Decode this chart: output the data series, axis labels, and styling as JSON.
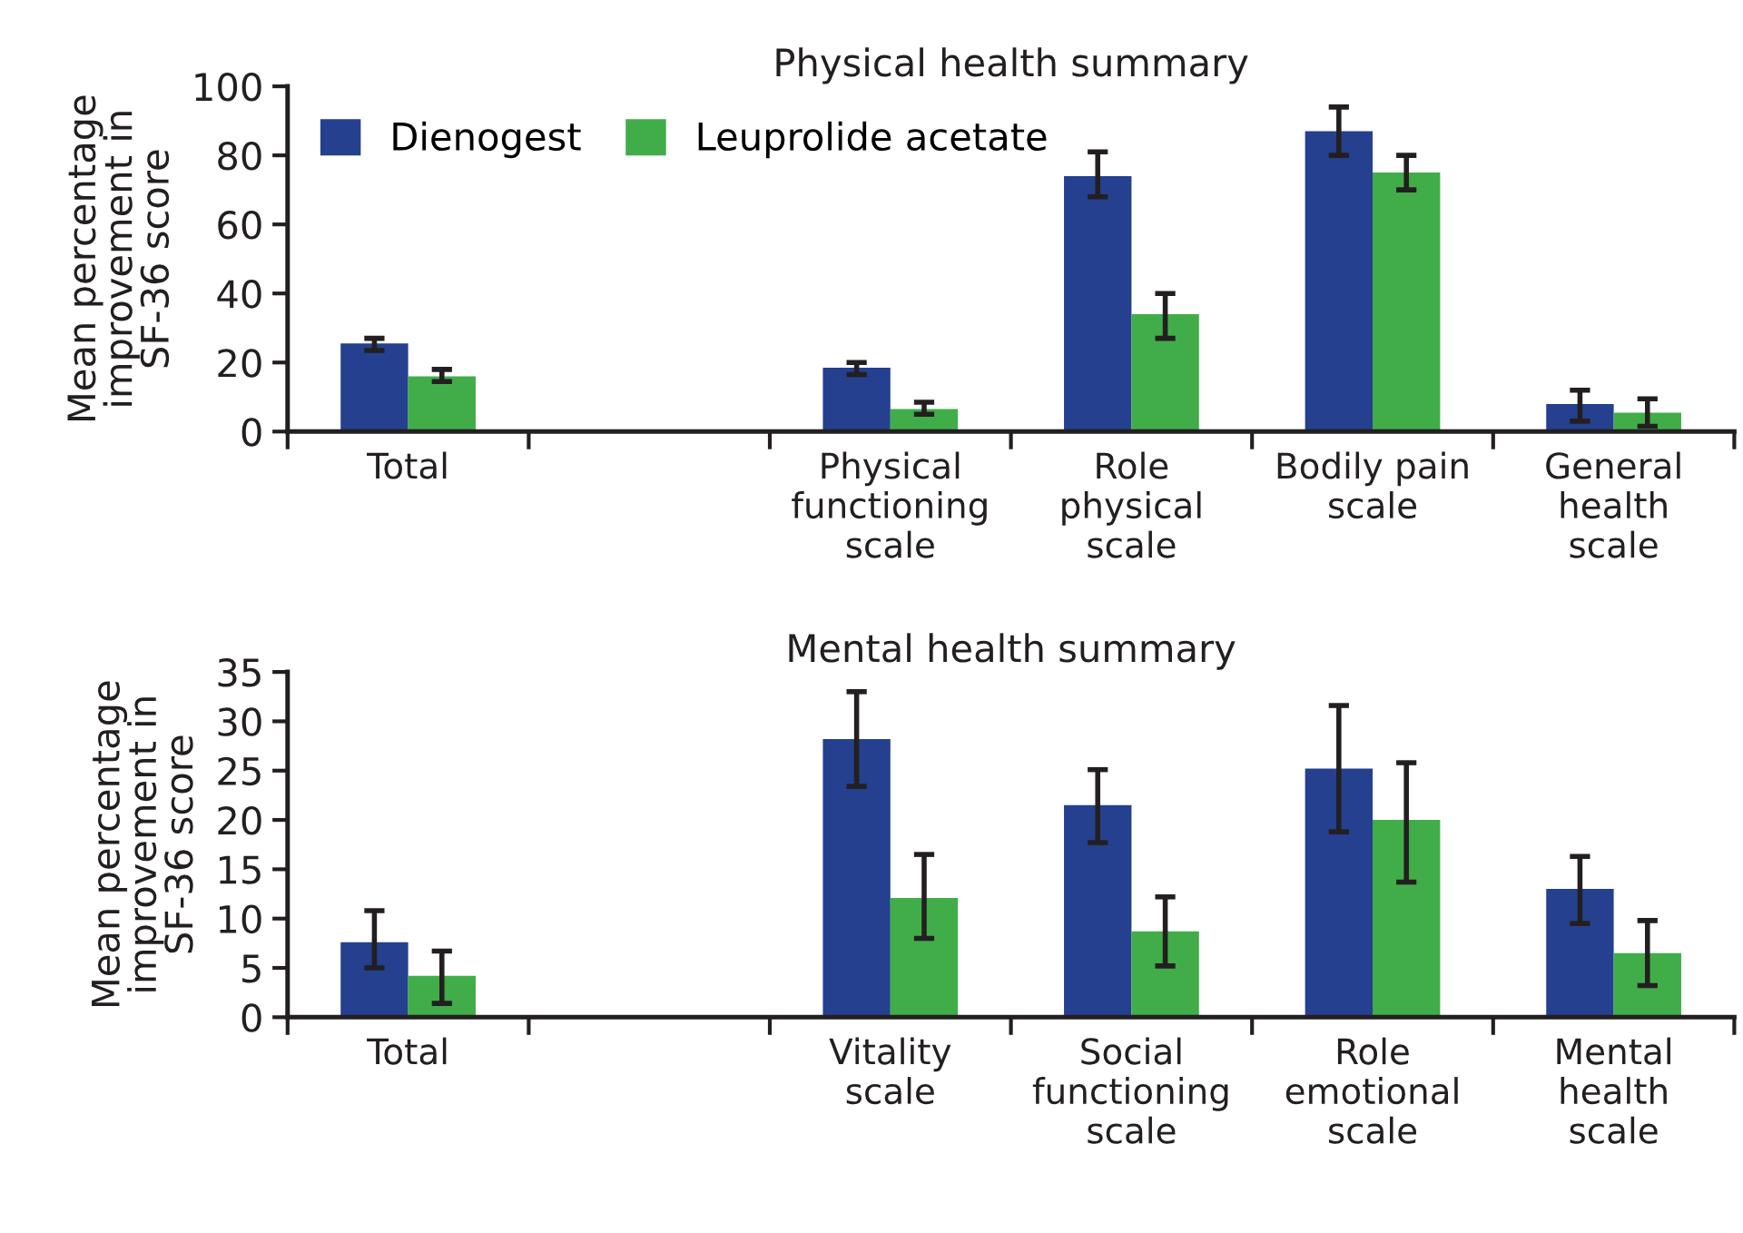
{
  "chart_data": [
    {
      "type": "bar",
      "title": "Physical health summary",
      "ylabel": "Mean percentage\nimprovement in\nSF-36 score",
      "categories": [
        "Total",
        null,
        "Physical\nfunctioning\nscale",
        "Role\nphysical\nscale",
        "Bodily pain\nscale",
        "General\nhealth\nscale"
      ],
      "series": [
        {
          "name": "Dienogest",
          "color": "#24408e",
          "values": [
            25.5,
            null,
            18.5,
            74,
            87,
            8
          ],
          "errors": [
            [
              23.5,
              27
            ],
            null,
            [
              16.5,
              20
            ],
            [
              68,
              81
            ],
            [
              80,
              94
            ],
            [
              3,
              12
            ]
          ]
        },
        {
          "name": "Leuprolide acetate",
          "color": "#41ad49",
          "values": [
            16,
            null,
            6.5,
            34,
            75,
            5.5
          ],
          "errors": [
            [
              14.5,
              18
            ],
            null,
            [
              5,
              8.5
            ],
            [
              27,
              40
            ],
            [
              70,
              80
            ],
            [
              1.5,
              9.5
            ]
          ]
        }
      ],
      "ylim": [
        0,
        100
      ],
      "yticks": [
        0,
        20,
        40,
        60,
        80,
        100
      ],
      "grid": false,
      "legend": "top left"
    },
    {
      "type": "bar",
      "title": "Mental health summary",
      "ylabel": "Mean percentage\nimprovement in\nSF-36 score",
      "categories": [
        "Total",
        null,
        "Vitality\nscale",
        "Social\nfunctioning\nscale",
        "Role\nemotional\nscale",
        "Mental\nhealth\nscale"
      ],
      "series": [
        {
          "color": "#24408e",
          "values": [
            7.6,
            null,
            28.2,
            21.5,
            25.2,
            13
          ],
          "errors": [
            [
              5,
              10.8
            ],
            null,
            [
              23.4,
              33
            ],
            [
              17.7,
              25.1
            ],
            [
              18.8,
              31.6
            ],
            [
              9.5,
              16.3
            ]
          ]
        },
        {
          "color": "#41ad49",
          "values": [
            4.2,
            null,
            12.1,
            8.7,
            20,
            6.5
          ],
          "errors": [
            [
              1.4,
              6.7
            ],
            null,
            [
              8,
              16.5
            ],
            [
              5.2,
              12.2
            ],
            [
              13.7,
              25.8
            ],
            [
              3.2,
              9.8
            ]
          ]
        }
      ],
      "ylim": [
        0,
        35
      ],
      "yticks": [
        0,
        5,
        10,
        15,
        20,
        25,
        30,
        35
      ],
      "grid": false,
      "legend": false
    }
  ]
}
